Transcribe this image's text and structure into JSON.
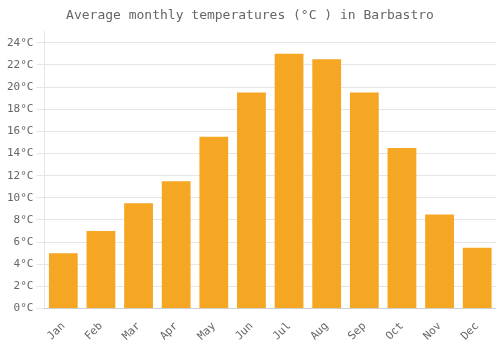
{
  "chart_data": {
    "type": "bar",
    "title": "Average monthly temperatures (°C ) in Barbastro",
    "categories": [
      "Jan",
      "Feb",
      "Mar",
      "Apr",
      "May",
      "Jun",
      "Jul",
      "Aug",
      "Sep",
      "Oct",
      "Nov",
      "Dec"
    ],
    "values": [
      5.0,
      7.0,
      9.5,
      11.5,
      15.5,
      19.5,
      23.0,
      22.5,
      19.5,
      14.5,
      8.5,
      5.5
    ],
    "color": "#F5A623",
    "ylim": [
      0,
      25
    ],
    "yticks": [
      {
        "value": 0,
        "label": "0°C"
      },
      {
        "value": 2,
        "label": "2°C"
      },
      {
        "value": 4,
        "label": "4°C"
      },
      {
        "value": 6,
        "label": "6°C"
      },
      {
        "value": 8,
        "label": "8°C"
      },
      {
        "value": 10,
        "label": "10°C"
      },
      {
        "value": 12,
        "label": "12°C"
      },
      {
        "value": 14,
        "label": "14°C"
      },
      {
        "value": 16,
        "label": "16°C"
      },
      {
        "value": 18,
        "label": "18°C"
      },
      {
        "value": 20,
        "label": "20°C"
      },
      {
        "value": 22,
        "label": "22°C"
      },
      {
        "value": 24,
        "label": "24°C"
      }
    ],
    "grid": true
  }
}
